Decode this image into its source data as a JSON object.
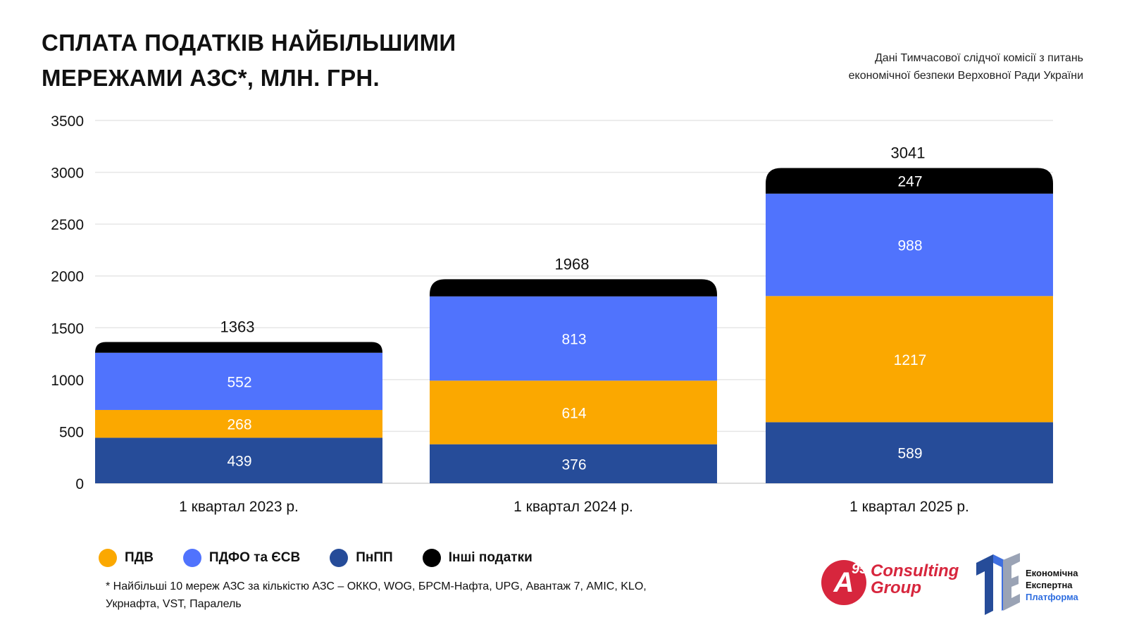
{
  "title": {
    "line1": "СПЛАТА ПОДАТКІВ НАЙБІЛЬШИМИ",
    "line2": "МЕРЕЖАМИ АЗС*, МЛН. ГРН."
  },
  "source": {
    "line1": "Дані Тимчасової слідчої комісії з питань",
    "line2": "економічної безпеки Верховної Ради України"
  },
  "colors": {
    "pnpp": "#264c99",
    "pdv": "#fba800",
    "pdfo": "#5073fd",
    "other": "#000000",
    "grid": "#e6e6e6"
  },
  "legend": [
    {
      "label": "ПДВ",
      "color": "#fba800"
    },
    {
      "label": "ПДФО та ЄСВ",
      "color": "#5073fd"
    },
    {
      "label": "ПнПП",
      "color": "#264c99"
    },
    {
      "label": "Інші податки",
      "color": "#000000"
    }
  ],
  "footnote": {
    "line1": "* Найбільші 10 мереж АЗС за кількістю АЗС – ОККО, WOG, БРСМ-Нафта, UPG, Авантаж 7, АМІС, KLO,",
    "line2": "Укрнафта, VST, Паралель"
  },
  "logos": {
    "a95_mark": "A",
    "a95_sup": "95",
    "a95_line1": "Consulting",
    "a95_line2": "Group",
    "eep_line1": "Економічна",
    "eep_line2": "Експертна",
    "eep_line3": "Платформа"
  },
  "chart_data": {
    "type": "bar",
    "stacked": true,
    "title": "СПЛАТА ПОДАТКІВ НАЙБІЛЬШИМИ МЕРЕЖАМИ АЗС*, МЛН. ГРН.",
    "categories": [
      "1 квартал 2023 р.",
      "1 квартал 2024 р.",
      "1 квартал 2025 р."
    ],
    "series": [
      {
        "name": "ПнПП",
        "key": "pnpp",
        "values": [
          439,
          376,
          589
        ],
        "labels": [
          "439",
          "376",
          "589"
        ]
      },
      {
        "name": "ПДВ",
        "key": "pdv",
        "values": [
          268,
          614,
          1217
        ],
        "labels": [
          "268",
          "614",
          "1217"
        ]
      },
      {
        "name": "ПДФО та ЄСВ",
        "key": "pdfo",
        "values": [
          552,
          813,
          988
        ],
        "labels": [
          "552",
          "813",
          "988"
        ]
      },
      {
        "name": "Інші податки",
        "key": "other",
        "values": [
          104,
          165,
          247
        ],
        "labels": [
          "",
          "",
          "247"
        ]
      }
    ],
    "totals": [
      1363,
      1968,
      3041
    ],
    "total_labels": [
      "1363",
      "1968",
      "3041"
    ],
    "yticks": [
      "0",
      "500",
      "1000",
      "1500",
      "2000",
      "2500",
      "3000",
      "3500"
    ],
    "ylim": [
      0,
      3500
    ],
    "grid": true,
    "legend_position": "bottom-left"
  }
}
